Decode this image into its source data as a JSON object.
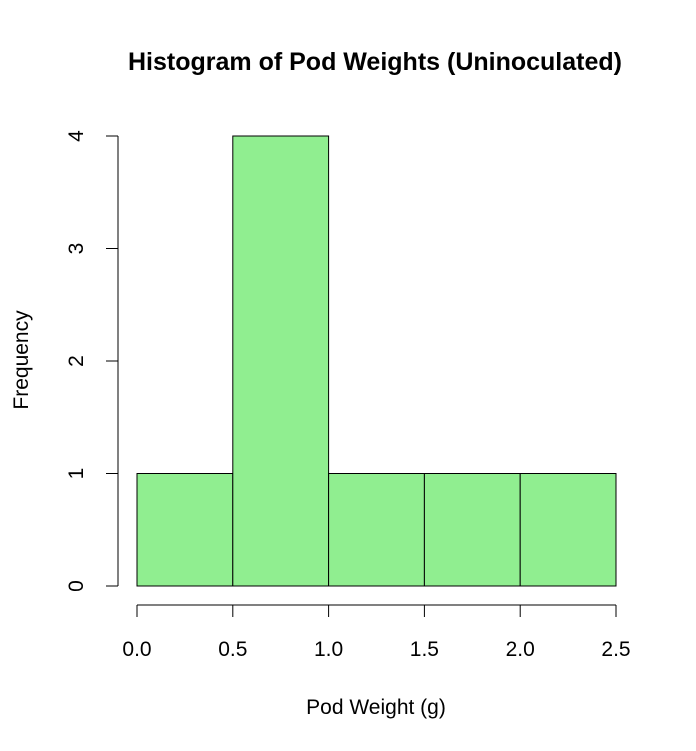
{
  "chart_data": {
    "type": "bar",
    "title": "Histogram of Pod Weights (Uninoculated)",
    "xlabel": "Pod Weight (g)",
    "ylabel": "Frequency",
    "bins": [
      {
        "start": 0.0,
        "end": 0.5,
        "count": 1
      },
      {
        "start": 0.5,
        "end": 1.0,
        "count": 4
      },
      {
        "start": 1.0,
        "end": 1.5,
        "count": 1
      },
      {
        "start": 1.5,
        "end": 2.0,
        "count": 1
      },
      {
        "start": 2.0,
        "end": 2.5,
        "count": 1
      }
    ],
    "xlim": [
      0.0,
      2.5
    ],
    "ylim": [
      0,
      4
    ],
    "x_ticks": [
      "0.0",
      "0.5",
      "1.0",
      "1.5",
      "2.0",
      "2.5"
    ],
    "y_ticks": [
      "0",
      "1",
      "2",
      "3",
      "4"
    ],
    "grid": false,
    "bar_color": "#90ee90",
    "bar_edge_color": "#000000"
  }
}
